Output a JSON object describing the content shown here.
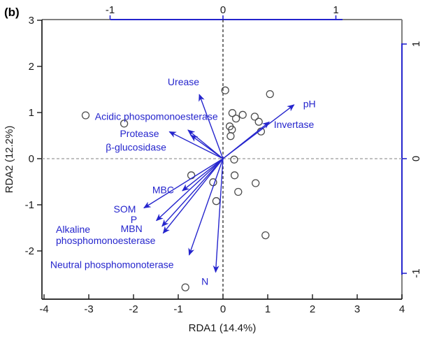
{
  "figure": {
    "panel_label": "(b)",
    "x_axis_title": "RDA1 (14.4%)",
    "y_axis_title": "RDA2 (12.2%)"
  },
  "chart_data": {
    "type": "scatter",
    "subtype": "rda-biplot-with-env-arrows",
    "title": "",
    "xlabel": "RDA1 (14.4%)",
    "ylabel": "RDA2 (12.2%)",
    "site_axes": {
      "x_ticks": [
        -4,
        -3,
        -2,
        -1,
        0,
        1,
        2,
        3,
        4
      ],
      "y_ticks": [
        3,
        2,
        1,
        0,
        -1,
        -2
      ],
      "x_range": [
        -4.05,
        4.0
      ],
      "y_range": [
        -3.05,
        3.02
      ],
      "grid": "off",
      "zero_lines": "dashed"
    },
    "arrow_axes": {
      "top_ticks": [
        -1,
        0,
        1
      ],
      "right_ticks": [
        1,
        0,
        -1
      ],
      "x_range": [
        -1.6,
        1.59
      ],
      "y_range": [
        -1.22,
        1.21
      ]
    },
    "sites": [
      [
        -3.07,
        0.94
      ],
      [
        -2.21,
        0.76
      ],
      [
        0.05,
        1.48
      ],
      [
        1.05,
        1.4
      ],
      [
        0.21,
        0.99
      ],
      [
        0.29,
        0.87
      ],
      [
        0.44,
        0.95
      ],
      [
        0.71,
        0.91
      ],
      [
        0.8,
        0.8
      ],
      [
        0.15,
        0.7
      ],
      [
        0.2,
        0.63
      ],
      [
        0.17,
        0.49
      ],
      [
        0.85,
        0.59
      ],
      [
        0.25,
        -0.02
      ],
      [
        -0.71,
        -0.36
      ],
      [
        -0.22,
        -0.51
      ],
      [
        0.26,
        -0.36
      ],
      [
        0.73,
        -0.53
      ],
      [
        0.34,
        -0.72
      ],
      [
        -0.15,
        -0.92
      ],
      [
        0.95,
        -1.66
      ],
      [
        -0.84,
        -2.79
      ]
    ],
    "arrows": [
      {
        "label": "pH",
        "x": 0.63,
        "y": 0.47,
        "label_x": 0.71,
        "label_y": 0.48,
        "anchor": "start"
      },
      {
        "label": "Invertase",
        "x": 0.41,
        "y": 0.32,
        "label_x": 0.45,
        "label_y": 0.3,
        "anchor": "start"
      },
      {
        "label": "Urease",
        "x": -0.21,
        "y": 0.56,
        "label_x": -0.35,
        "label_y": 0.67,
        "anchor": "middle"
      },
      {
        "label": "Acidic phospomonoesterase",
        "x": -0.31,
        "y": 0.25,
        "label_x": -0.59,
        "label_y": 0.37,
        "anchor": "middle"
      },
      {
        "label": "Protease",
        "x": -0.475,
        "y": 0.235,
        "label_x": -0.74,
        "label_y": 0.22,
        "anchor": "middle"
      },
      {
        "label": "β-glucosidase",
        "x": -0.285,
        "y": 0.205,
        "label_x": -0.77,
        "label_y": 0.1,
        "anchor": "middle"
      },
      {
        "label": "MBC",
        "x": -0.36,
        "y": -0.28,
        "label_x": -0.53,
        "label_y": -0.27,
        "anchor": "middle"
      },
      {
        "label": "SOM",
        "x": -0.7,
        "y": -0.43,
        "label_x": -0.87,
        "label_y": -0.44,
        "anchor": "middle"
      },
      {
        "label": "P",
        "x": -0.59,
        "y": -0.54,
        "label_x": -0.79,
        "label_y": -0.53,
        "anchor": "middle"
      },
      {
        "label": "MBN",
        "x": -0.54,
        "y": -0.59,
        "label_x": -0.81,
        "label_y": -0.61,
        "anchor": "middle"
      },
      {
        "label": "Alkaline phosphomonoesterase",
        "lines": [
          "Alkaline",
          "phosphomonoesterase"
        ],
        "x": -0.53,
        "y": -0.65,
        "label_x": -1.48,
        "label_y": -0.615,
        "anchor": "start"
      },
      {
        "label": "Neutral phosphomonoterase",
        "x": -0.3,
        "y": -0.84,
        "label_x": -1.53,
        "label_y": -0.925,
        "anchor": "start"
      },
      {
        "label": "N",
        "x": -0.065,
        "y": -0.99,
        "label_x": -0.16,
        "label_y": -1.07,
        "anchor": "middle"
      }
    ],
    "colors": {
      "arrow_blue": "#2525CD",
      "site_outline": "#4d4d4d",
      "frame_gray": "#7f7f7f",
      "axis_black": "#1a1a1a",
      "dash_horizontal": "#999999",
      "dash_vertical": "#1a1a1a",
      "tick_label": "#1a1a1a"
    }
  }
}
